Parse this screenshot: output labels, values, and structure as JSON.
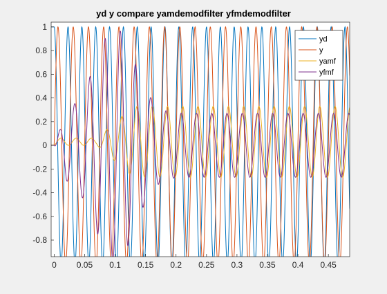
{
  "figure": {
    "background": "#f0f0f0"
  },
  "chart_data": {
    "type": "line",
    "title": "yd y compare yamdemodfilter yfmdemodfilter",
    "xlabel": "",
    "ylabel": "",
    "xlim": [
      -0.005,
      0.485
    ],
    "ylim": [
      -0.94,
      1.04
    ],
    "xticks": [
      0,
      0.05,
      0.1,
      0.15,
      0.2,
      0.25,
      0.3,
      0.35,
      0.4,
      0.45
    ],
    "xtick_labels": [
      "0",
      "0.05",
      "0.1",
      "0.15",
      "0.2",
      "0.25",
      "0.3",
      "0.35",
      "0.4",
      "0.45"
    ],
    "yticks": [
      -0.8,
      -0.6,
      -0.4,
      -0.2,
      0,
      0.2,
      0.4,
      0.6,
      0.8,
      1
    ],
    "ytick_labels": [
      "-0.8",
      "-0.6",
      "-0.4",
      "-0.2",
      "0",
      "0.2",
      "0.4",
      "0.6",
      "0.8",
      "1"
    ],
    "grid": false,
    "legend_position": "top-right",
    "series": [
      {
        "name": "yd",
        "color": "#0072bd",
        "description": "sinusoid, amplitude 1, ~44 Hz, starting at 1 (cosine)",
        "amplitude": 1,
        "frequency_hz": 44,
        "phase_deg": 90
      },
      {
        "name": "y",
        "color": "#d95319",
        "description": "sinusoid, amplitude 1, ~40 Hz, starting at 0",
        "amplitude": 1,
        "frequency_hz": 40,
        "phase_deg": 0
      },
      {
        "name": "yamf",
        "color": "#edb120",
        "description": "small oscillation ~0.03 near start, then ramps to steady ~0.3 amplitude oscillation around 0.03 after t≈0.12",
        "steady_amplitude": 0.3,
        "offset": 0.03,
        "frequency_hz": 40
      },
      {
        "name": "yfmf",
        "color": "#7e2f8e",
        "description": "transient oscillation with peak ~0.97 at t≈0.1, decaying to steady ~0.27 amplitude oscillation around 0",
        "steady_amplitude": 0.27,
        "peak_value": 0.97,
        "peak_x": 0.1,
        "frequency_hz": 40
      }
    ]
  }
}
